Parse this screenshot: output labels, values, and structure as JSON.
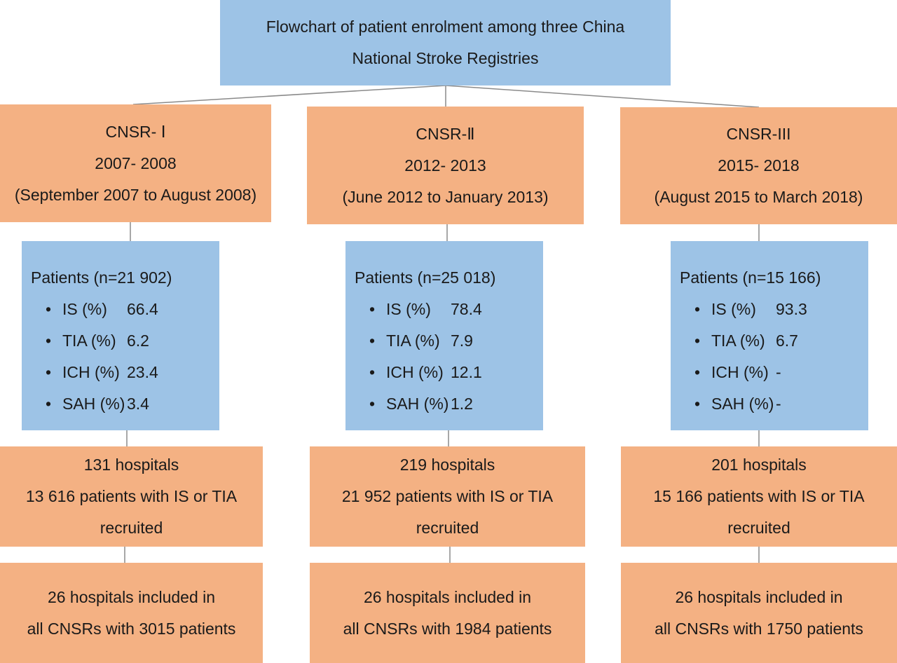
{
  "title": {
    "line1": "Flowchart of patient enrolment among three China",
    "line2": "National Stroke Registries"
  },
  "registries": [
    {
      "name": "CNSR- Ⅰ",
      "years": "2007- 2008",
      "period": "(September 2007 to August 2008)",
      "patients": {
        "heading": "Patients (n=21 902)",
        "items": [
          {
            "label": "IS (%)",
            "value": "66.4"
          },
          {
            "label": "TIA (%)",
            "value": "6.2"
          },
          {
            "label": "ICH (%)",
            "value": "23.4"
          },
          {
            "label": "SAH (%)",
            "value": "3.4"
          }
        ]
      },
      "recruited": {
        "line1": "131 hospitals",
        "line2": "13 616 patients with IS or TIA",
        "line3": "recruited"
      },
      "included": {
        "line1": "26 hospitals included in",
        "line2": "all CNSRs with 3015 patients"
      }
    },
    {
      "name": "CNSR-Ⅱ",
      "years": "2012- 2013",
      "period": "(June 2012 to January 2013)",
      "patients": {
        "heading": "Patients (n=25 018)",
        "items": [
          {
            "label": "IS (%)",
            "value": "78.4"
          },
          {
            "label": "TIA (%)",
            "value": "7.9"
          },
          {
            "label": "ICH (%)",
            "value": "12.1"
          },
          {
            "label": "SAH (%)",
            "value": "1.2"
          }
        ]
      },
      "recruited": {
        "line1": "219 hospitals",
        "line2": "21 952 patients with IS or TIA",
        "line3": "recruited"
      },
      "included": {
        "line1": "26 hospitals included in",
        "line2": "all CNSRs with 1984 patients"
      }
    },
    {
      "name": "CNSR-III",
      "years": "2015- 2018",
      "period": "(August 2015 to March 2018)",
      "patients": {
        "heading": "Patients (n=15 166)",
        "items": [
          {
            "label": "IS (%)",
            "value": "93.3"
          },
          {
            "label": "TIA (%)",
            "value": "6.7"
          },
          {
            "label": "ICH (%)",
            "value": "-"
          },
          {
            "label": "SAH (%)",
            "value": "-"
          }
        ]
      },
      "recruited": {
        "line1": "201 hospitals",
        "line2": "15 166 patients with IS or TIA",
        "line3": "recruited"
      },
      "included": {
        "line1": "26 hospitals included in",
        "line2": "all CNSRs with 1750 patients"
      }
    }
  ],
  "colors": {
    "blue_box": "#9dc3e6",
    "orange_box": "#f4b183",
    "connector": "#8a8a8a"
  }
}
